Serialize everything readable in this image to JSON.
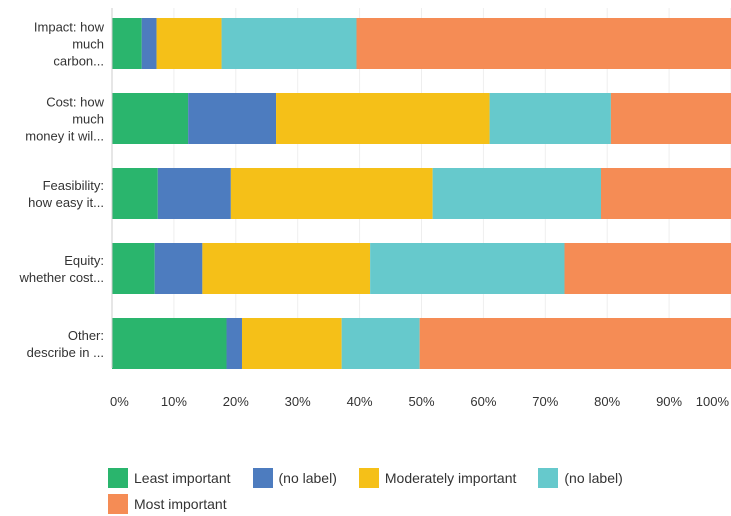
{
  "chart_data": {
    "type": "bar",
    "orientation": "horizontal",
    "stacked": true,
    "categories": [
      [
        "Impact: how",
        "much",
        "carbon..."
      ],
      [
        "Cost: how",
        "much",
        "money it wil..."
      ],
      [
        "Feasibility:",
        "how easy it..."
      ],
      [
        "Equity:",
        "whether cost..."
      ],
      [
        "Other:",
        "describe in ..."
      ]
    ],
    "x_ticks": [
      "0%",
      "10%",
      "20%",
      "30%",
      "40%",
      "50%",
      "60%",
      "70%",
      "80%",
      "90%",
      "100%"
    ],
    "xlim": [
      0,
      100
    ],
    "grid": true,
    "legend_position": "bottom",
    "series": [
      {
        "name": "Least important",
        "color": "#2ab56d",
        "values": [
          4.8,
          12.3,
          7.4,
          6.9,
          18.5
        ]
      },
      {
        "name": "(no label)",
        "color": "#4d7cbf",
        "values": [
          2.4,
          14.2,
          11.8,
          7.7,
          2.5
        ]
      },
      {
        "name": "Moderately important",
        "color": "#f5c018",
        "values": [
          10.5,
          34.5,
          32.6,
          27.1,
          16.1
        ]
      },
      {
        "name": "(no label)",
        "color": "#66c9cc",
        "values": [
          21.8,
          19.6,
          27.2,
          31.4,
          12.6
        ]
      },
      {
        "name": "Most important",
        "color": "#f58c55",
        "values": [
          60.5,
          19.4,
          21.0,
          26.9,
          50.3
        ]
      }
    ]
  }
}
